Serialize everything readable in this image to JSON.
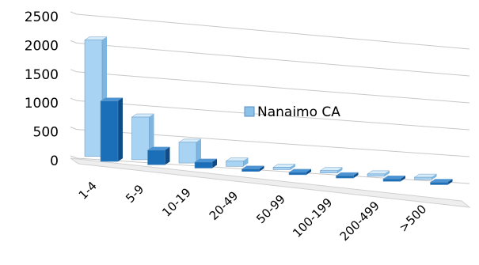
{
  "chart_data": {
    "type": "bar",
    "style": "3d-clustered-column",
    "categories": [
      "1-4",
      "5-9",
      "10-19",
      "20-49",
      "50-99",
      "100-199",
      "200-499",
      ">500"
    ],
    "series": [
      {
        "name": "Nanaimo CA",
        "values": [
          2020,
          760,
          380,
          100,
          20,
          5,
          2,
          1
        ]
      },
      {
        "values": [
          1050,
          260,
          110,
          30,
          8,
          3,
          1,
          1
        ]
      }
    ],
    "yticks": [
      "0",
      "500",
      "1000",
      "1500",
      "2000",
      "2500"
    ],
    "ylim": [
      0,
      2500
    ],
    "grid": true,
    "legend": {
      "placement": "center-right",
      "entries": [
        "Nanaimo CA"
      ]
    },
    "colors": {
      "light": "#a9d3f2",
      "dark": "#1b6fb8"
    }
  }
}
